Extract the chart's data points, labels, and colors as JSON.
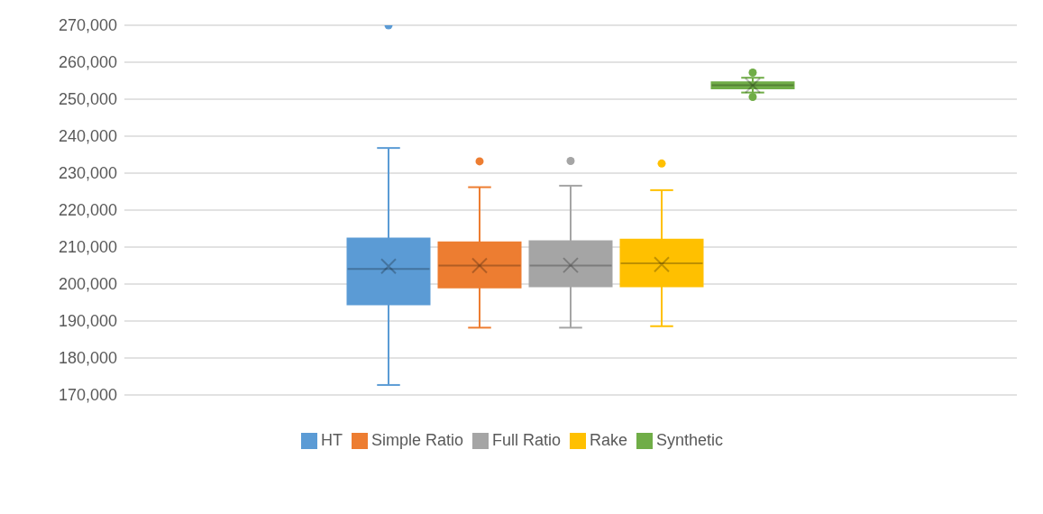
{
  "chart_data": {
    "type": "box",
    "categories": [
      null
    ],
    "ylim": [
      170000,
      270000
    ],
    "yticks": [
      {
        "value": 170000,
        "label": "170,000"
      },
      {
        "value": 180000,
        "label": "180,000"
      },
      {
        "value": 190000,
        "label": "190,000"
      },
      {
        "value": 200000,
        "label": "200,000"
      },
      {
        "value": 210000,
        "label": "210,000"
      },
      {
        "value": 220000,
        "label": "220,000"
      },
      {
        "value": 230000,
        "label": "230,000"
      },
      {
        "value": 240000,
        "label": "240,000"
      },
      {
        "value": 250000,
        "label": "250,000"
      },
      {
        "value": 260000,
        "label": "260,000"
      },
      {
        "value": 270000,
        "label": "270,000"
      }
    ],
    "grid": "y",
    "legend": "bottom",
    "series": [
      {
        "name": "HT",
        "color": "#5b9bd5",
        "boxes": [
          {
            "low": 172700,
            "q1": 194500,
            "median": 204100,
            "q3": 212300,
            "high": 236800,
            "mean": 204800,
            "outliers": [
              270000
            ]
          }
        ]
      },
      {
        "name": "Simple Ratio",
        "color": "#ed7d31",
        "boxes": [
          {
            "low": 188200,
            "q1": 199100,
            "median": 205000,
            "q3": 211300,
            "high": 226200,
            "mean": 205000,
            "outliers": [
              233200
            ]
          }
        ]
      },
      {
        "name": "Full Ratio",
        "color": "#a5a5a5",
        "boxes": [
          {
            "low": 188200,
            "q1": 199400,
            "median": 205000,
            "q3": 211600,
            "high": 226600,
            "mean": 205100,
            "outliers": [
              233300
            ]
          }
        ]
      },
      {
        "name": "Rake",
        "color": "#ffc000",
        "boxes": [
          {
            "low": 188600,
            "q1": 199400,
            "median": 205600,
            "q3": 212000,
            "high": 225400,
            "mean": 205300,
            "outliers": [
              232600
            ]
          }
        ]
      },
      {
        "name": "Synthetic",
        "color": "#70ad47",
        "boxes": [
          {
            "low": 251800,
            "q1": 252900,
            "median": 253800,
            "q3": 254600,
            "high": 255800,
            "mean": 253700,
            "outliers": [
              257200,
              250600
            ]
          }
        ]
      }
    ]
  }
}
